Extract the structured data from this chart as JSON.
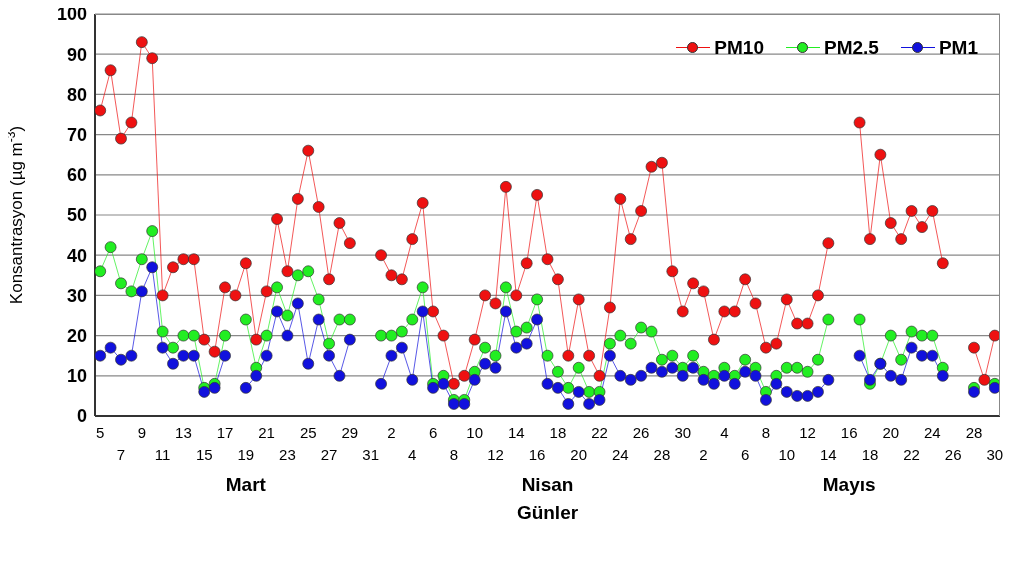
{
  "chart_data": {
    "type": "line",
    "ylabel": "Konsantrasyon (µg m$^{-3}$)",
    "xlabel": "Günler",
    "annotations": [
      "Mart",
      "Nisan",
      "Mayıs"
    ],
    "categories": [
      "5",
      null,
      "7",
      null,
      "9",
      null,
      "11",
      null,
      "13",
      null,
      "15",
      null,
      "17",
      null,
      "19",
      null,
      "21",
      null,
      "23",
      null,
      "25",
      null,
      "27",
      null,
      "29",
      null,
      "31",
      null,
      "2",
      null,
      "4",
      null,
      "6",
      null,
      "8",
      null,
      "10",
      null,
      "12",
      null,
      "14",
      null,
      "16",
      null,
      "18",
      null,
      "20",
      null,
      "22",
      null,
      "24",
      null,
      "26",
      null,
      "28",
      null,
      "30",
      null,
      "2",
      null,
      "4",
      null,
      "6",
      null,
      "8",
      null,
      "10",
      null,
      "12",
      null,
      "14",
      null,
      "16",
      null,
      "18",
      null,
      "20",
      null,
      "22",
      null,
      "24",
      null,
      "26",
      null,
      "28",
      null,
      "30"
    ],
    "series": [
      {
        "name": "PM10",
        "color": "#ee1111",
        "values": [
          76,
          86,
          69,
          73,
          93,
          89,
          30,
          37,
          39,
          39,
          19,
          16,
          32,
          30,
          38,
          19,
          31,
          49,
          36,
          54,
          66,
          52,
          34,
          48,
          43,
          null,
          null,
          40,
          35,
          34,
          44,
          53,
          26,
          20,
          8,
          10,
          19,
          30,
          28,
          57,
          30,
          38,
          55,
          39,
          34,
          15,
          29,
          15,
          10,
          27,
          54,
          44,
          51,
          62,
          63,
          36,
          26,
          33,
          31,
          19,
          26,
          26,
          34,
          28,
          17,
          18,
          29,
          23,
          23,
          30,
          43,
          null,
          null,
          73,
          44,
          65,
          48,
          44,
          51,
          47,
          51,
          38,
          null,
          null,
          17,
          9,
          20
        ]
      },
      {
        "name": "PM2.5",
        "color": "#22ee22",
        "values": [
          36,
          42,
          33,
          31,
          39,
          46,
          21,
          17,
          20,
          20,
          7,
          8,
          20,
          null,
          24,
          12,
          20,
          32,
          25,
          35,
          36,
          29,
          18,
          24,
          24,
          null,
          null,
          20,
          20,
          21,
          24,
          32,
          8,
          10,
          4,
          4,
          11,
          17,
          15,
          32,
          21,
          22,
          29,
          15,
          11,
          7,
          12,
          6,
          6,
          18,
          20,
          18,
          22,
          21,
          14,
          15,
          12,
          15,
          11,
          10,
          12,
          10,
          14,
          12,
          6,
          10,
          12,
          12,
          11,
          14,
          24,
          null,
          null,
          24,
          8,
          13,
          20,
          14,
          21,
          20,
          20,
          12,
          null,
          null,
          7,
          null,
          8
        ]
      },
      {
        "name": "PM1",
        "color": "#1111dd",
        "values": [
          15,
          17,
          14,
          15,
          31,
          37,
          17,
          13,
          15,
          15,
          6,
          7,
          15,
          null,
          7,
          10,
          15,
          26,
          20,
          28,
          13,
          24,
          15,
          10,
          19,
          null,
          null,
          8,
          15,
          17,
          9,
          26,
          7,
          8,
          3,
          3,
          9,
          13,
          12,
          26,
          17,
          18,
          24,
          8,
          7,
          3,
          6,
          3,
          4,
          15,
          10,
          9,
          10,
          12,
          11,
          12,
          10,
          12,
          9,
          8,
          10,
          8,
          11,
          10,
          4,
          8,
          6,
          5,
          5,
          6,
          9,
          null,
          null,
          15,
          9,
          13,
          10,
          9,
          17,
          15,
          15,
          10,
          null,
          null,
          6,
          null,
          7
        ]
      }
    ],
    "ylim": [
      0,
      100
    ],
    "yticks": [
      0,
      10,
      20,
      30,
      40,
      50,
      60,
      70,
      80,
      90,
      100
    ],
    "grid": "y",
    "legend": "top right",
    "marker": "circle",
    "line_style": "solid"
  }
}
